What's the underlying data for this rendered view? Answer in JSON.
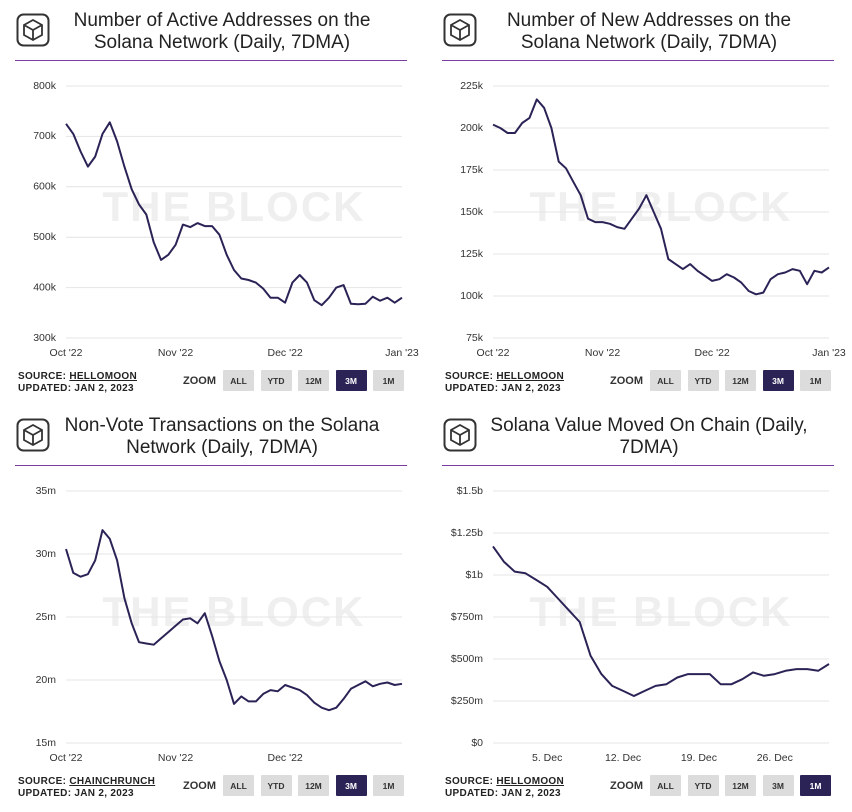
{
  "chart_data": [
    {
      "type": "line",
      "title": "Number of Active Addresses on the Solana Network (Daily, 7DMA)",
      "watermark": "THE BLOCK",
      "source_label": "SOURCE:",
      "source": "HELLOMOON",
      "updated": "UPDATED: JAN 2, 2023",
      "zoom_label": "ZOOM",
      "zoom_buttons": [
        "ALL",
        "YTD",
        "12M",
        "3M",
        "1M"
      ],
      "zoom_selected": "3M",
      "color": "#2b2356",
      "grid": true,
      "categories": [
        "Oct '22",
        null,
        null,
        null,
        null,
        null,
        null,
        null,
        null,
        null,
        null,
        null,
        null,
        null,
        null,
        "Nov '22",
        null,
        null,
        null,
        null,
        null,
        null,
        null,
        null,
        null,
        null,
        null,
        null,
        null,
        null,
        "Dec '22",
        null,
        null,
        null,
        null,
        null,
        null,
        null,
        null,
        null,
        null,
        null,
        null,
        null,
        null,
        null,
        "Jan '23"
      ],
      "values": [
        725000,
        705000,
        670000,
        640000,
        660000,
        705000,
        728000,
        690000,
        640000,
        595000,
        565000,
        545000,
        490000,
        455000,
        465000,
        485000,
        525000,
        520000,
        528000,
        522000,
        522000,
        505000,
        465000,
        435000,
        418000,
        415000,
        410000,
        398000,
        380000,
        380000,
        370000,
        410000,
        425000,
        410000,
        375000,
        365000,
        380000,
        400000,
        405000,
        368000,
        367000,
        368000,
        382000,
        374000,
        380000,
        370000,
        380000
      ],
      "ylim": [
        300000,
        800000
      ],
      "yticks": [
        {
          "value": 300000,
          "label": "300k"
        },
        {
          "value": 400000,
          "label": "400k"
        },
        {
          "value": 500000,
          "label": "500k"
        },
        {
          "value": 600000,
          "label": "600k"
        },
        {
          "value": 700000,
          "label": "700k"
        },
        {
          "value": 800000,
          "label": "800k"
        }
      ]
    },
    {
      "type": "line",
      "title": "Number of New Addresses on the Solana Network (Daily, 7DMA)",
      "watermark": "THE BLOCK",
      "source_label": "SOURCE:",
      "source": "HELLOMOON",
      "updated": "UPDATED: JAN 2, 2023",
      "zoom_label": "ZOOM",
      "zoom_buttons": [
        "ALL",
        "YTD",
        "12M",
        "3M",
        "1M"
      ],
      "zoom_selected": "3M",
      "color": "#2b2356",
      "grid": true,
      "categories": [
        "Oct '22",
        null,
        null,
        null,
        null,
        null,
        null,
        null,
        null,
        null,
        null,
        null,
        null,
        null,
        null,
        "Nov '22",
        null,
        null,
        null,
        null,
        null,
        null,
        null,
        null,
        null,
        null,
        null,
        null,
        null,
        null,
        "Dec '22",
        null,
        null,
        null,
        null,
        null,
        null,
        null,
        null,
        null,
        null,
        null,
        null,
        null,
        null,
        null,
        "Jan '23"
      ],
      "values": [
        202000,
        200000,
        197000,
        197000,
        203000,
        206000,
        217000,
        212000,
        200000,
        180000,
        176000,
        168000,
        160000,
        146000,
        144000,
        144000,
        143000,
        141000,
        140000,
        146000,
        152000,
        160000,
        150000,
        140000,
        122000,
        119000,
        116000,
        119000,
        115000,
        112000,
        109000,
        110000,
        113000,
        111000,
        108000,
        103000,
        101000,
        102000,
        110000,
        113000,
        114000,
        116000,
        115000,
        107000,
        115000,
        114000,
        117000
      ],
      "ylim": [
        75000,
        225000
      ],
      "yticks": [
        {
          "value": 75000,
          "label": "75k"
        },
        {
          "value": 100000,
          "label": "100k"
        },
        {
          "value": 125000,
          "label": "125k"
        },
        {
          "value": 150000,
          "label": "150k"
        },
        {
          "value": 175000,
          "label": "175k"
        },
        {
          "value": 200000,
          "label": "200k"
        },
        {
          "value": 225000,
          "label": "225k"
        }
      ]
    },
    {
      "type": "line",
      "title": "Non-Vote Transactions on the Solana Network (Daily, 7DMA)",
      "watermark": "THE BLOCK",
      "source_label": "SOURCE:",
      "source": "CHAINCHRUNCH",
      "updated": "UPDATED: JAN 2, 2023",
      "zoom_label": "ZOOM",
      "zoom_buttons": [
        "ALL",
        "YTD",
        "12M",
        "3M",
        "1M"
      ],
      "zoom_selected": "3M",
      "color": "#2b2356",
      "grid": true,
      "categories": [
        "Oct '22",
        null,
        null,
        null,
        null,
        null,
        null,
        null,
        null,
        null,
        null,
        null,
        null,
        null,
        null,
        "Nov '22",
        null,
        null,
        null,
        null,
        null,
        null,
        null,
        null,
        null,
        null,
        null,
        null,
        null,
        null,
        "Dec '22",
        null,
        null,
        null,
        null,
        null,
        null,
        null,
        null,
        null,
        null,
        null,
        null,
        null,
        null,
        null,
        null
      ],
      "values": [
        30400000,
        28500000,
        28200000,
        28400000,
        29500000,
        31900000,
        31200000,
        29500000,
        26500000,
        24500000,
        23000000,
        22900000,
        22800000,
        23300000,
        23800000,
        24300000,
        24800000,
        24900000,
        24500000,
        25300000,
        23500000,
        21500000,
        20000000,
        18100000,
        18700000,
        18300000,
        18300000,
        18900000,
        19200000,
        19100000,
        19600000,
        19400000,
        19200000,
        18800000,
        18200000,
        17800000,
        17600000,
        17800000,
        18500000,
        19300000,
        19600000,
        19900000,
        19500000,
        19700000,
        19800000,
        19600000,
        19700000
      ],
      "ylim": [
        15000000,
        35000000
      ],
      "yticks": [
        {
          "value": 15000000,
          "label": "15m"
        },
        {
          "value": 20000000,
          "label": "20m"
        },
        {
          "value": 25000000,
          "label": "25m"
        },
        {
          "value": 30000000,
          "label": "30m"
        },
        {
          "value": 35000000,
          "label": "35m"
        }
      ]
    },
    {
      "type": "line",
      "title": "Solana Value Moved On Chain (Daily, 7DMA)",
      "watermark": "THE BLOCK",
      "source_label": "SOURCE:",
      "source": "HELLOMOON",
      "updated": "UPDATED: JAN 2, 2023",
      "zoom_label": "ZOOM",
      "zoom_buttons": [
        "ALL",
        "YTD",
        "12M",
        "3M",
        "1M"
      ],
      "zoom_selected": "1M",
      "color": "#2b2356",
      "grid": true,
      "categories": [
        null,
        null,
        null,
        null,
        null,
        "5. Dec",
        null,
        null,
        null,
        null,
        null,
        null,
        "12. Dec",
        null,
        null,
        null,
        null,
        null,
        null,
        "19. Dec",
        null,
        null,
        null,
        null,
        null,
        null,
        "26. Dec",
        null,
        null,
        null,
        null,
        null
      ],
      "values": [
        1170000000,
        1080000000,
        1020000000,
        1010000000,
        970000000,
        930000000,
        860000000,
        790000000,
        720000000,
        520000000,
        410000000,
        340000000,
        310000000,
        280000000,
        310000000,
        340000000,
        350000000,
        390000000,
        410000000,
        410000000,
        410000000,
        350000000,
        350000000,
        380000000,
        420000000,
        400000000,
        410000000,
        430000000,
        440000000,
        440000000,
        430000000,
        470000000
      ],
      "ylim": [
        0,
        1500000000
      ],
      "yticks": [
        {
          "value": 0,
          "label": "$0"
        },
        {
          "value": 250000000,
          "label": "$250m"
        },
        {
          "value": 500000000,
          "label": "$500m"
        },
        {
          "value": 750000000,
          "label": "$750m"
        },
        {
          "value": 1000000000,
          "label": "$1b"
        },
        {
          "value": 1250000000,
          "label": "$1.25b"
        },
        {
          "value": 1500000000,
          "label": "$1.5b"
        }
      ]
    }
  ]
}
